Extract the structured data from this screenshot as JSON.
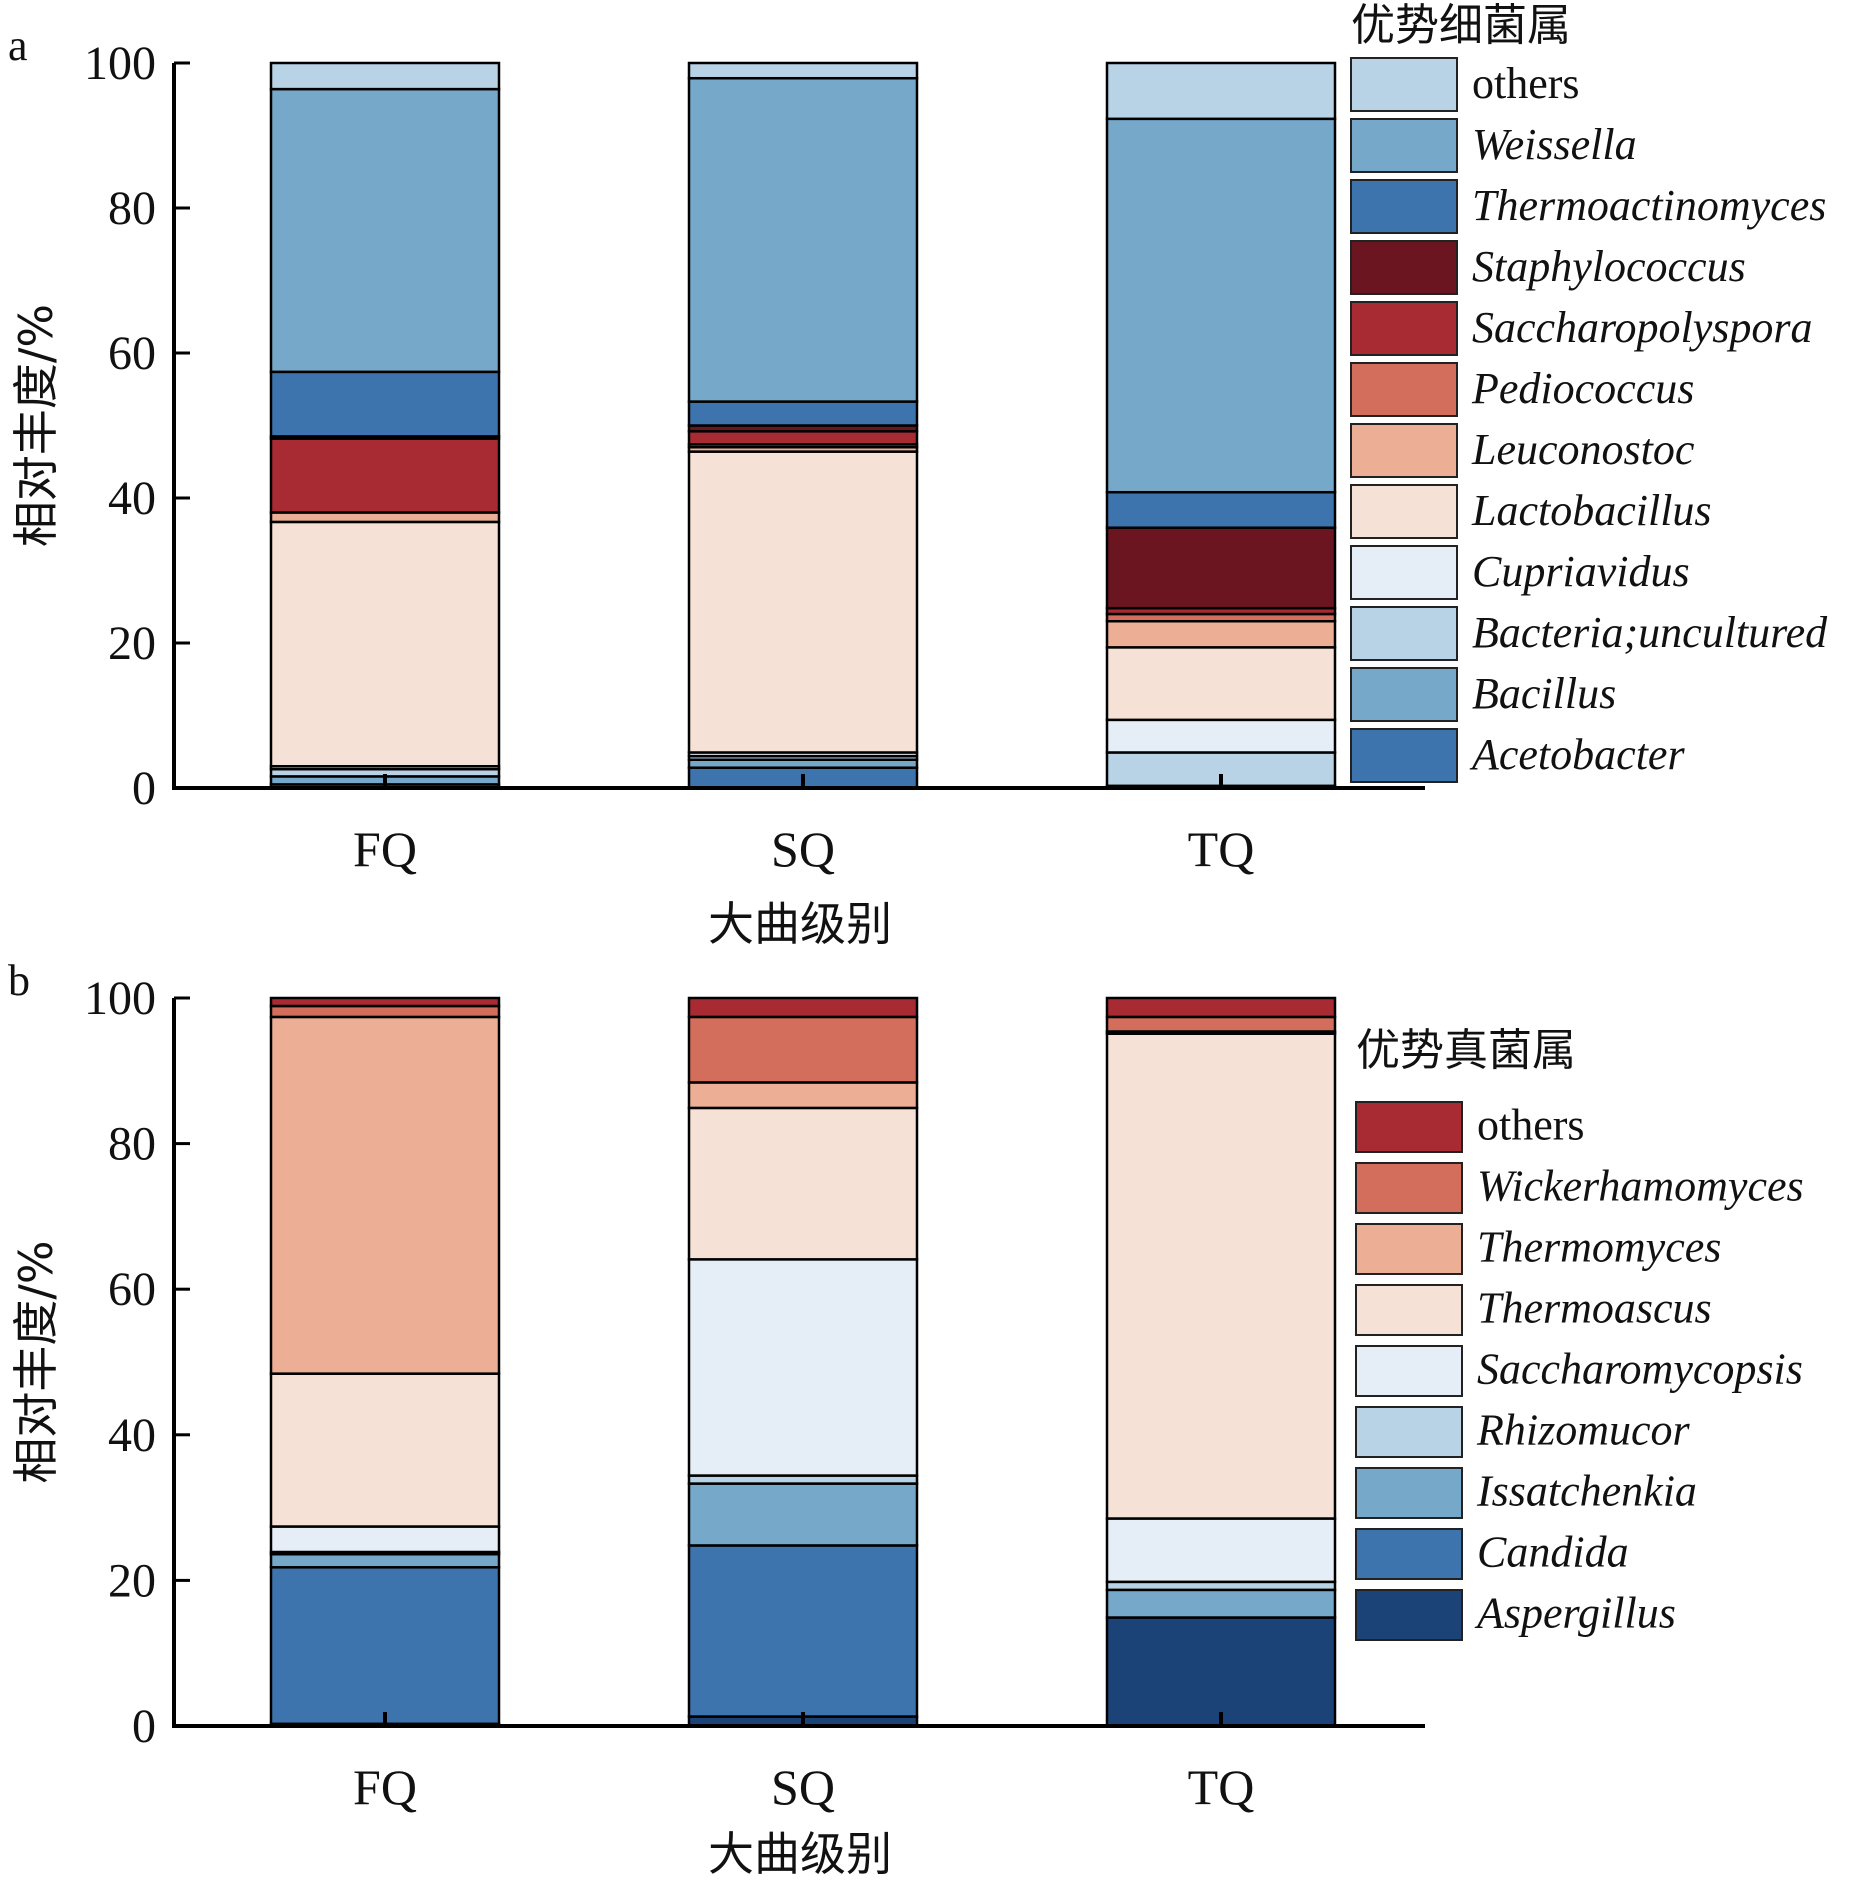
{
  "chart_data": [
    {
      "panel": "a",
      "type": "bar",
      "stacked": true,
      "title": "",
      "xlabel": "大曲级别",
      "ylabel": "相对丰度/%",
      "ylim": [
        0,
        100
      ],
      "yticks": [
        0,
        20,
        40,
        60,
        80,
        100
      ],
      "categories": [
        "FQ",
        "SQ",
        "TQ"
      ],
      "legend_title": "优势细菌属",
      "legend_position": "right",
      "series": [
        {
          "name": "Acetobacter",
          "italic": true,
          "color": "#3d74ad",
          "values": [
            0.5,
            2.8,
            0.1
          ]
        },
        {
          "name": "Bacillus",
          "italic": true,
          "color": "#76a8c9",
          "values": [
            1.1,
            1.1,
            0.2
          ]
        },
        {
          "name": "Bacteria;uncultured",
          "italic": true,
          "color": "#b7d3e5",
          "values": [
            1.0,
            0.5,
            4.6
          ]
        },
        {
          "name": "Cupriavidus",
          "italic": true,
          "color": "#e5eef6",
          "values": [
            0.4,
            0.5,
            4.5
          ]
        },
        {
          "name": "Lactobacillus",
          "italic": true,
          "color": "#f6e1d6",
          "values": [
            33.7,
            41.5,
            10.0
          ]
        },
        {
          "name": "Leuconostoc",
          "italic": true,
          "color": "#edae96",
          "values": [
            1.3,
            0.6,
            3.6
          ]
        },
        {
          "name": "Pediococcus",
          "italic": true,
          "color": "#d46e5c",
          "values": [
            0.0,
            0.4,
            1.0
          ]
        },
        {
          "name": "Saccharopolyspora",
          "italic": true,
          "color": "#a82a33",
          "values": [
            10.2,
            1.8,
            0.8
          ]
        },
        {
          "name": "Staphylococcus",
          "italic": true,
          "color": "#6a1520",
          "values": [
            0.3,
            0.8,
            11.1
          ]
        },
        {
          "name": "Thermoactinomyces",
          "italic": true,
          "color": "#3d74ad",
          "values": [
            8.9,
            3.3,
            4.9
          ]
        },
        {
          "name": "Weissella",
          "italic": true,
          "color": "#76a8c9",
          "values": [
            39.0,
            44.6,
            51.5
          ]
        },
        {
          "name": "others",
          "italic": false,
          "color": "#b7d3e5",
          "values": [
            3.6,
            2.1,
            7.7
          ]
        }
      ]
    },
    {
      "panel": "b",
      "type": "bar",
      "stacked": true,
      "title": "",
      "xlabel": "大曲级别",
      "ylabel": "相对丰度/%",
      "ylim": [
        0,
        100
      ],
      "yticks": [
        0,
        20,
        40,
        60,
        80,
        100
      ],
      "categories": [
        "FQ",
        "SQ",
        "TQ"
      ],
      "legend_title": "优势真菌属",
      "legend_position": "right",
      "series": [
        {
          "name": "Aspergillus",
          "italic": true,
          "color": "#1c4378",
          "values": [
            0.3,
            1.3,
            14.9
          ]
        },
        {
          "name": "Candida",
          "italic": true,
          "color": "#3d74ad",
          "values": [
            21.5,
            23.5,
            0.0
          ]
        },
        {
          "name": "Issatchenkia",
          "italic": true,
          "color": "#76a8c9",
          "values": [
            1.8,
            8.5,
            3.8
          ]
        },
        {
          "name": "Rhizomucor",
          "italic": true,
          "color": "#b7d3e5",
          "values": [
            0.3,
            1.1,
            1.1
          ]
        },
        {
          "name": "Saccharomycopsis",
          "italic": true,
          "color": "#e5eef6",
          "values": [
            3.5,
            29.7,
            8.7
          ]
        },
        {
          "name": "Thermoascus",
          "italic": true,
          "color": "#f6e1d6",
          "values": [
            21.0,
            20.8,
            66.6
          ]
        },
        {
          "name": "Thermomyces",
          "italic": true,
          "color": "#edae96",
          "values": [
            49.0,
            3.5,
            0.3
          ]
        },
        {
          "name": "Wickerhamomyces",
          "italic": true,
          "color": "#d46e5c",
          "values": [
            1.5,
            9.0,
            2.0
          ]
        },
        {
          "name": "others",
          "italic": false,
          "color": "#a82a33",
          "values": [
            1.1,
            2.6,
            2.6
          ]
        }
      ]
    }
  ]
}
